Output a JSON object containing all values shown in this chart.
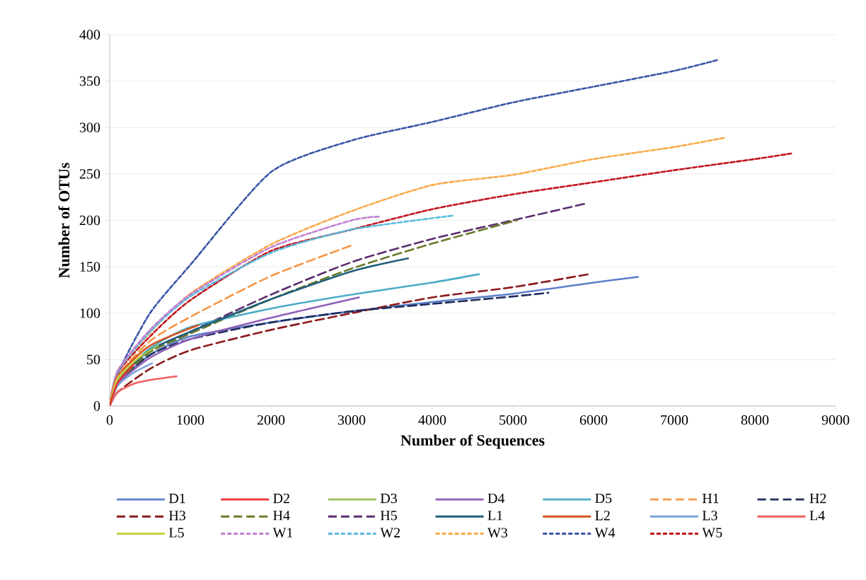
{
  "chart_data": {
    "type": "line",
    "xlabel": "Number of Sequences",
    "ylabel": "Number of OTUs",
    "xlim": [
      0,
      9000
    ],
    "ylim": [
      0,
      400
    ],
    "xticks": [
      0,
      1000,
      2000,
      3000,
      4000,
      5000,
      6000,
      7000,
      8000,
      9000
    ],
    "yticks": [
      0,
      50,
      100,
      150,
      200,
      250,
      300,
      350,
      400
    ],
    "grid": "y",
    "legend": "bottom",
    "series": [
      {
        "name": "D1",
        "color": "#5b7fc9",
        "line_style": "solid",
        "x": [
          0,
          100,
          500,
          1000,
          2000,
          3000,
          4000,
          5000,
          6000,
          6550
        ],
        "values": [
          0,
          25,
          55,
          75,
          90,
          102,
          112,
          121,
          133,
          139
        ]
      },
      {
        "name": "D2",
        "color": "#e8322f",
        "line_style": "solid",
        "x": [
          0,
          100,
          300
        ],
        "values": [
          0,
          25,
          45
        ]
      },
      {
        "name": "D3",
        "color": "#9bbb59",
        "line_style": "solid",
        "x": [
          0,
          100,
          300,
          600
        ],
        "values": [
          0,
          28,
          48,
          65
        ]
      },
      {
        "name": "D4",
        "color": "#8e5fb8",
        "line_style": "solid",
        "x": [
          0,
          100,
          500,
          1000,
          2000,
          3090
        ],
        "values": [
          0,
          24,
          52,
          72,
          95,
          117
        ]
      },
      {
        "name": "D5",
        "color": "#4bacc6",
        "line_style": "solid",
        "x": [
          0,
          100,
          500,
          1000,
          2000,
          3000,
          4000,
          4580
        ],
        "values": [
          0,
          28,
          62,
          85,
          105,
          120,
          133,
          142
        ]
      },
      {
        "name": "H1",
        "color": "#f79646",
        "line_style": "dashed",
        "x": [
          0,
          100,
          500,
          1000,
          2000,
          3000
        ],
        "values": [
          0,
          32,
          70,
          96,
          140,
          173
        ]
      },
      {
        "name": "H2",
        "color": "#1f2d5a",
        "line_style": "dashed",
        "x": [
          0,
          100,
          500,
          1000,
          2000,
          3000,
          4000,
          5000,
          5440
        ],
        "values": [
          0,
          25,
          55,
          72,
          90,
          102,
          110,
          118,
          122
        ]
      },
      {
        "name": "H3",
        "color": "#8b1a1a",
        "line_style": "dashed",
        "x": [
          0,
          100,
          500,
          1000,
          2000,
          3000,
          4000,
          5000,
          5940
        ],
        "values": [
          0,
          15,
          40,
          60,
          82,
          100,
          117,
          128,
          142
        ]
      },
      {
        "name": "H4",
        "color": "#6b7a2a",
        "line_style": "dashed",
        "x": [
          0,
          100,
          500,
          1000,
          2000,
          3000,
          4000,
          5050
        ],
        "values": [
          0,
          25,
          58,
          78,
          115,
          148,
          175,
          200
        ]
      },
      {
        "name": "H5",
        "color": "#5b2d6e",
        "line_style": "dashed",
        "x": [
          0,
          100,
          500,
          1000,
          2000,
          3000,
          4000,
          5000,
          5900
        ],
        "values": [
          0,
          26,
          60,
          80,
          120,
          155,
          180,
          200,
          218
        ]
      },
      {
        "name": "L1",
        "color": "#1f5f7a",
        "line_style": "solid",
        "x": [
          0,
          100,
          500,
          1000,
          2000,
          3000,
          3700
        ],
        "values": [
          0,
          28,
          60,
          80,
          115,
          145,
          159
        ]
      },
      {
        "name": "L2",
        "color": "#d9531e",
        "line_style": "solid",
        "x": [
          0,
          100,
          500,
          1100
        ],
        "values": [
          0,
          32,
          65,
          87
        ]
      },
      {
        "name": "L3",
        "color": "#7ba3dc",
        "line_style": "solid",
        "x": [
          0,
          100,
          300,
          525
        ],
        "values": [
          0,
          22,
          36,
          46
        ]
      },
      {
        "name": "L4",
        "color": "#f06060",
        "line_style": "solid",
        "x": [
          0,
          100,
          300,
          500,
          830
        ],
        "values": [
          0,
          15,
          24,
          28,
          32
        ]
      },
      {
        "name": "L5",
        "color": "#c8d045",
        "line_style": "solid",
        "x": [
          0,
          100,
          400
        ],
        "values": [
          0,
          30,
          55
        ]
      },
      {
        "name": "W1",
        "color": "#c080d0",
        "line_style": "dotted",
        "x": [
          0,
          100,
          500,
          1000,
          2000,
          3000,
          3350
        ],
        "values": [
          0,
          38,
          82,
          120,
          171,
          200,
          204
        ]
      },
      {
        "name": "W2",
        "color": "#5bbde0",
        "line_style": "dotted",
        "x": [
          0,
          100,
          500,
          1000,
          2000,
          3000,
          4250
        ],
        "values": [
          0,
          37,
          80,
          118,
          165,
          190,
          205
        ]
      },
      {
        "name": "W3",
        "color": "#f9a94a",
        "line_style": "dotted",
        "x": [
          0,
          100,
          500,
          1000,
          2000,
          3000,
          4000,
          5000,
          6000,
          7000,
          7630
        ],
        "values": [
          0,
          38,
          79,
          121,
          174,
          210,
          238,
          249,
          266,
          279,
          289
        ]
      },
      {
        "name": "W4",
        "color": "#3a55a8",
        "line_style": "dotted",
        "x": [
          0,
          100,
          500,
          1000,
          2000,
          3000,
          4000,
          5000,
          6000,
          7000,
          7550
        ],
        "values": [
          0,
          35,
          100,
          152,
          252,
          286,
          306,
          327,
          344,
          361,
          373
        ]
      },
      {
        "name": "W5",
        "color": "#c0141c",
        "line_style": "dotted",
        "x": [
          0,
          100,
          500,
          1000,
          2000,
          3000,
          4000,
          5000,
          6000,
          7000,
          8000,
          8450
        ],
        "values": [
          0,
          36,
          75,
          114,
          167,
          190,
          212,
          228,
          241,
          254,
          266,
          272
        ]
      }
    ]
  }
}
